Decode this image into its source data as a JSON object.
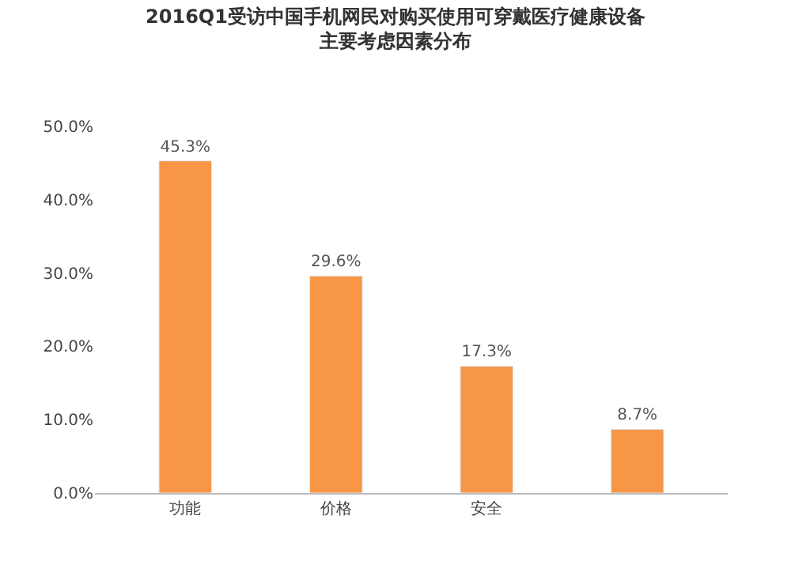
{
  "chart_data": {
    "type": "bar",
    "title": "2016Q1受访中国手机网民对购买使用可穿戴医疗健康设备主要考虑因素分布",
    "categories": [
      "功能",
      "价格",
      "安全",
      null
    ],
    "values": [
      45.3,
      29.6,
      17.3,
      8.7
    ],
    "value_labels": [
      "45.3%",
      "29.6%",
      "17.3%",
      "8.7%"
    ],
    "color": "#f79646",
    "ylim": [
      0,
      50
    ],
    "yticks": [
      {
        "value": 0,
        "label": "0.0%"
      },
      {
        "value": 10,
        "label": "10.0%"
      },
      {
        "value": 20,
        "label": "20.0%"
      },
      {
        "value": 30,
        "label": "30.0%"
      },
      {
        "value": 40,
        "label": "40.0%"
      },
      {
        "value": 50,
        "label": "50.0%"
      }
    ]
  }
}
